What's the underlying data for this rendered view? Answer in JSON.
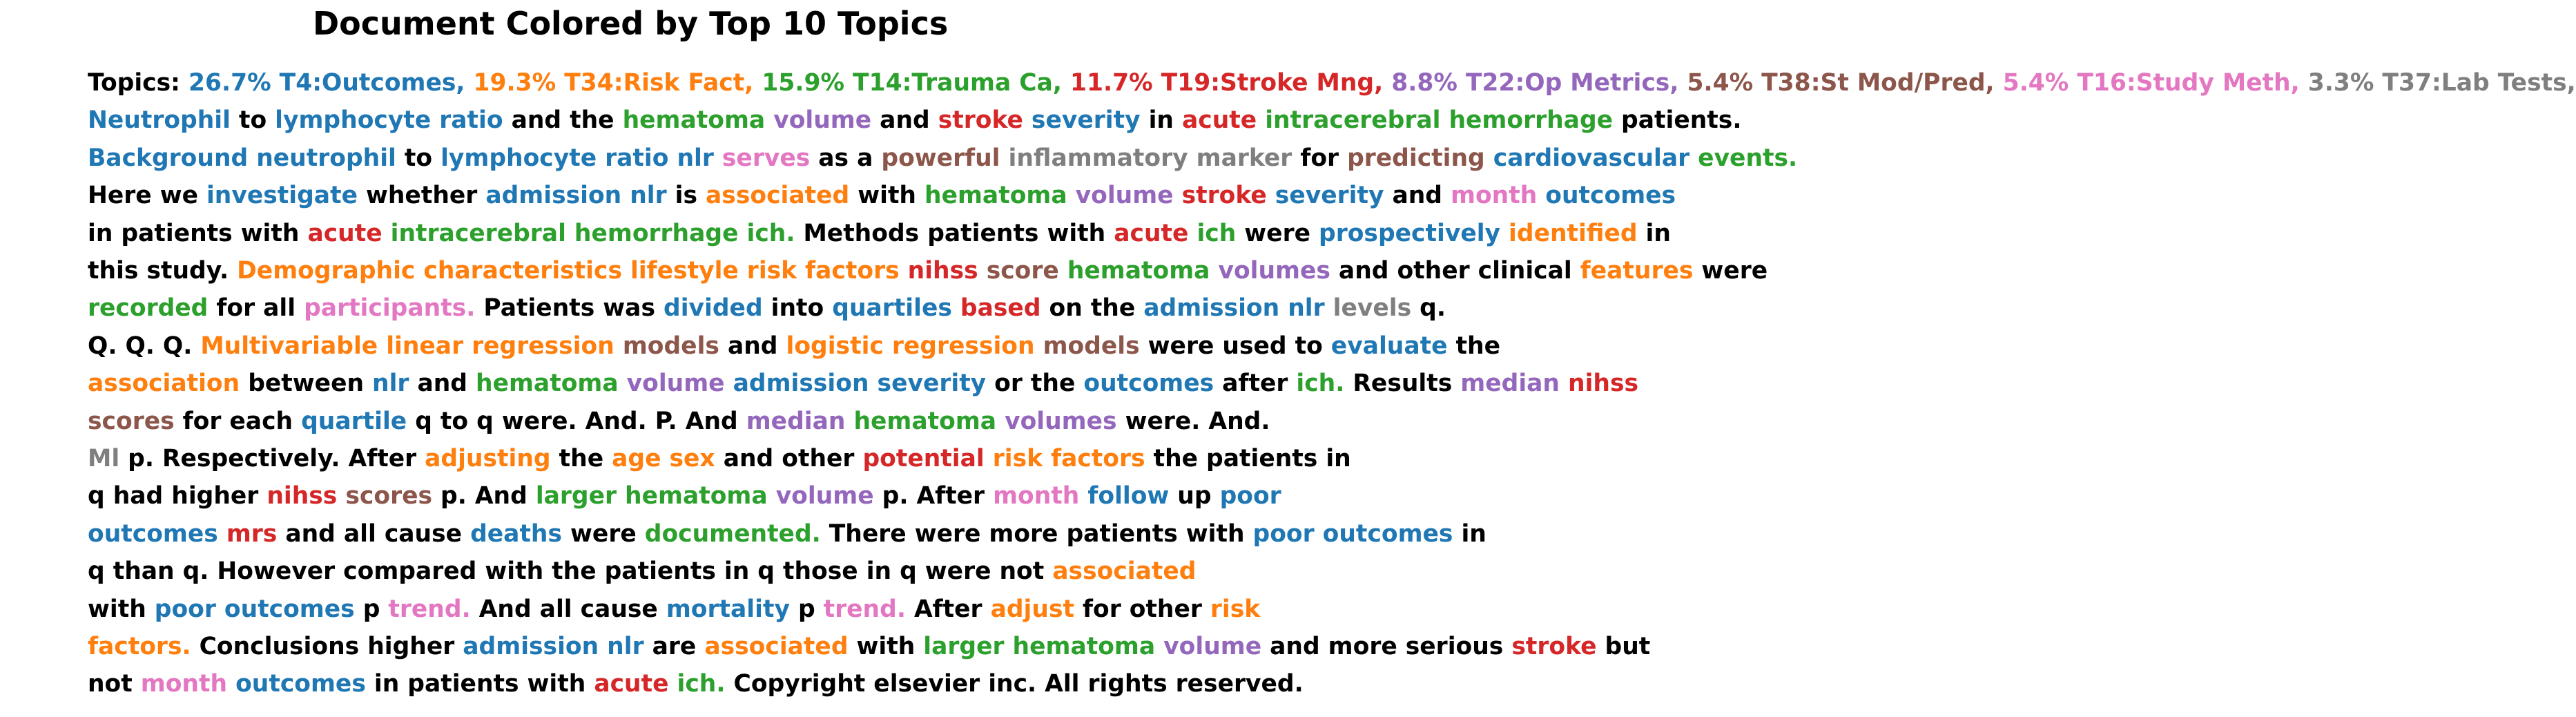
{
  "title": "Document Colored by Top 10 Topics",
  "colors": {
    "default": "#000000",
    "T4": "#1f77b4",
    "T34": "#ff7f0e",
    "T14": "#2ca02c",
    "T19": "#d62728",
    "T22": "#9467bd",
    "T38": "#8c564b",
    "T16": "#e377c2",
    "T37": "#7f7f7f"
  },
  "lines": [
    [
      [
        "Topics: ",
        ""
      ],
      [
        "26.7% T4:Outcomes, ",
        "T4"
      ],
      [
        "19.3% T34:Risk Fact, ",
        "T34"
      ],
      [
        "15.9% T14:Trauma Ca, ",
        "T14"
      ],
      [
        "11.7% T19:Stroke Mng, ",
        "T19"
      ],
      [
        "8.8% T22:Op Metrics, ",
        "T22"
      ],
      [
        "5.4% T38:St Mod/Pred, ",
        "T38"
      ],
      [
        "5.4% T16:Study Meth, ",
        "T16"
      ],
      [
        "3.3% T37:Lab Tests,",
        "T37"
      ]
    ],
    [
      [
        "Neutrophil",
        "T4"
      ],
      [
        " to ",
        ""
      ],
      [
        "lymphocyte ratio",
        "T4"
      ],
      [
        " and the ",
        ""
      ],
      [
        "hematoma",
        "T14"
      ],
      [
        " ",
        ""
      ],
      [
        "volume",
        "T22"
      ],
      [
        " and ",
        ""
      ],
      [
        "stroke",
        "T19"
      ],
      [
        " ",
        ""
      ],
      [
        "severity",
        "T4"
      ],
      [
        " in ",
        ""
      ],
      [
        "acute",
        "T19"
      ],
      [
        " ",
        ""
      ],
      [
        "intracerebral hemorrhage",
        "T14"
      ],
      [
        " patients.",
        ""
      ]
    ],
    [
      [
        "Background neutrophil",
        "T4"
      ],
      [
        " to ",
        ""
      ],
      [
        "lymphocyte ratio nlr",
        "T4"
      ],
      [
        " ",
        ""
      ],
      [
        "serves",
        "T16"
      ],
      [
        " as a ",
        ""
      ],
      [
        "powerful",
        "T38"
      ],
      [
        " ",
        ""
      ],
      [
        "inflammatory marker",
        "T37"
      ],
      [
        " for ",
        ""
      ],
      [
        "predicting",
        "T38"
      ],
      [
        " ",
        ""
      ],
      [
        "cardiovascular",
        "T4"
      ],
      [
        " ",
        ""
      ],
      [
        "events.",
        "T14"
      ]
    ],
    [
      [
        "Here we ",
        ""
      ],
      [
        "investigate",
        "T4"
      ],
      [
        " whether ",
        ""
      ],
      [
        "admission nlr",
        "T4"
      ],
      [
        " is ",
        ""
      ],
      [
        "associated",
        "T34"
      ],
      [
        " with ",
        ""
      ],
      [
        "hematoma",
        "T14"
      ],
      [
        " ",
        ""
      ],
      [
        "volume",
        "T22"
      ],
      [
        " ",
        ""
      ],
      [
        "stroke",
        "T19"
      ],
      [
        " ",
        ""
      ],
      [
        "severity",
        "T4"
      ],
      [
        " and ",
        ""
      ],
      [
        "month",
        "T16"
      ],
      [
        " ",
        ""
      ],
      [
        "outcomes",
        "T4"
      ]
    ],
    [
      [
        "in patients with ",
        ""
      ],
      [
        "acute",
        "T19"
      ],
      [
        " ",
        ""
      ],
      [
        "intracerebral hemorrhage ich.",
        "T14"
      ],
      [
        " Methods patients with ",
        ""
      ],
      [
        "acute",
        "T19"
      ],
      [
        " ",
        ""
      ],
      [
        "ich",
        "T14"
      ],
      [
        " were ",
        ""
      ],
      [
        "prospectively",
        "T4"
      ],
      [
        " ",
        ""
      ],
      [
        "identified",
        "T34"
      ],
      [
        " in",
        ""
      ]
    ],
    [
      [
        "this study. ",
        ""
      ],
      [
        "Demographic characteristics lifestyle risk factors",
        "T34"
      ],
      [
        " ",
        ""
      ],
      [
        "nihss",
        "T19"
      ],
      [
        " ",
        ""
      ],
      [
        "score",
        "T38"
      ],
      [
        " ",
        ""
      ],
      [
        "hematoma",
        "T14"
      ],
      [
        " ",
        ""
      ],
      [
        "volumes",
        "T22"
      ],
      [
        " and other clinical ",
        ""
      ],
      [
        "features",
        "T34"
      ],
      [
        " were",
        ""
      ]
    ],
    [
      [
        "recorded",
        "T14"
      ],
      [
        " for all ",
        ""
      ],
      [
        "participants.",
        "T16"
      ],
      [
        " Patients was ",
        ""
      ],
      [
        "divided",
        "T4"
      ],
      [
        " into ",
        ""
      ],
      [
        "quartiles",
        "T4"
      ],
      [
        " ",
        ""
      ],
      [
        "based",
        "T19"
      ],
      [
        " on the ",
        ""
      ],
      [
        "admission nlr",
        "T4"
      ],
      [
        " ",
        ""
      ],
      [
        "levels",
        "T37"
      ],
      [
        " q.",
        ""
      ]
    ],
    [
      [
        "Q. Q. Q. ",
        ""
      ],
      [
        "Multivariable linear regression",
        "T34"
      ],
      [
        " ",
        ""
      ],
      [
        "models",
        "T38"
      ],
      [
        " and ",
        ""
      ],
      [
        "logistic regression",
        "T34"
      ],
      [
        " ",
        ""
      ],
      [
        "models",
        "T38"
      ],
      [
        " were used to ",
        ""
      ],
      [
        "evaluate",
        "T4"
      ],
      [
        " the",
        ""
      ]
    ],
    [
      [
        "association",
        "T34"
      ],
      [
        " between ",
        ""
      ],
      [
        "nlr",
        "T4"
      ],
      [
        " and ",
        ""
      ],
      [
        "hematoma",
        "T14"
      ],
      [
        " ",
        ""
      ],
      [
        "volume",
        "T22"
      ],
      [
        " ",
        ""
      ],
      [
        "admission severity",
        "T4"
      ],
      [
        " or the ",
        ""
      ],
      [
        "outcomes",
        "T4"
      ],
      [
        " after ",
        ""
      ],
      [
        "ich.",
        "T14"
      ],
      [
        " Results ",
        ""
      ],
      [
        "median",
        "T22"
      ],
      [
        " ",
        ""
      ],
      [
        "nihss",
        "T19"
      ]
    ],
    [
      [
        "scores",
        "T38"
      ],
      [
        " for each ",
        ""
      ],
      [
        "quartile",
        "T4"
      ],
      [
        " q to q were. And. P. And ",
        ""
      ],
      [
        "median",
        "T22"
      ],
      [
        " ",
        ""
      ],
      [
        "hematoma",
        "T14"
      ],
      [
        " ",
        ""
      ],
      [
        "volumes",
        "T22"
      ],
      [
        " were. And.",
        ""
      ]
    ],
    [
      [
        "Ml",
        "T37"
      ],
      [
        " p. Respectively. After ",
        ""
      ],
      [
        "adjusting",
        "T34"
      ],
      [
        " the ",
        ""
      ],
      [
        "age sex",
        "T34"
      ],
      [
        " and other ",
        ""
      ],
      [
        "potential",
        "T19"
      ],
      [
        " ",
        ""
      ],
      [
        "risk factors",
        "T34"
      ],
      [
        " the patients in",
        ""
      ]
    ],
    [
      [
        "q had higher ",
        ""
      ],
      [
        "nihss",
        "T19"
      ],
      [
        " ",
        ""
      ],
      [
        "scores",
        "T38"
      ],
      [
        " p. And ",
        ""
      ],
      [
        "larger hematoma",
        "T14"
      ],
      [
        " ",
        ""
      ],
      [
        "volume",
        "T22"
      ],
      [
        " p. After ",
        ""
      ],
      [
        "month",
        "T16"
      ],
      [
        " ",
        ""
      ],
      [
        "follow",
        "T4"
      ],
      [
        " up ",
        ""
      ],
      [
        "poor",
        "T4"
      ]
    ],
    [
      [
        "outcomes",
        "T4"
      ],
      [
        " ",
        ""
      ],
      [
        "mrs",
        "T19"
      ],
      [
        " and all cause ",
        ""
      ],
      [
        "deaths",
        "T4"
      ],
      [
        " were ",
        ""
      ],
      [
        "documented.",
        "T14"
      ],
      [
        " There were more patients with ",
        ""
      ],
      [
        "poor outcomes",
        "T4"
      ],
      [
        " in",
        ""
      ]
    ],
    [
      [
        "q than q. However compared with the patients in q those in q were not ",
        ""
      ],
      [
        "associated",
        "T34"
      ]
    ],
    [
      [
        "with ",
        ""
      ],
      [
        "poor outcomes",
        "T4"
      ],
      [
        " p ",
        ""
      ],
      [
        "trend.",
        "T16"
      ],
      [
        " And all cause ",
        ""
      ],
      [
        "mortality",
        "T4"
      ],
      [
        " p ",
        ""
      ],
      [
        "trend.",
        "T16"
      ],
      [
        " After ",
        ""
      ],
      [
        "adjust",
        "T34"
      ],
      [
        " for other ",
        ""
      ],
      [
        "risk",
        "T34"
      ]
    ],
    [
      [
        "factors.",
        "T34"
      ],
      [
        " Conclusions higher ",
        ""
      ],
      [
        "admission nlr",
        "T4"
      ],
      [
        " are ",
        ""
      ],
      [
        "associated",
        "T34"
      ],
      [
        " with ",
        ""
      ],
      [
        "larger hematoma",
        "T14"
      ],
      [
        " ",
        ""
      ],
      [
        "volume",
        "T22"
      ],
      [
        " and more serious ",
        ""
      ],
      [
        "stroke",
        "T19"
      ],
      [
        " but",
        ""
      ]
    ],
    [
      [
        "not ",
        ""
      ],
      [
        "month",
        "T16"
      ],
      [
        " ",
        ""
      ],
      [
        "outcomes",
        "T4"
      ],
      [
        " in patients with ",
        ""
      ],
      [
        "acute",
        "T19"
      ],
      [
        " ",
        ""
      ],
      [
        "ich.",
        "T14"
      ],
      [
        " Copyright elsevier inc. All rights reserved.",
        ""
      ]
    ]
  ]
}
